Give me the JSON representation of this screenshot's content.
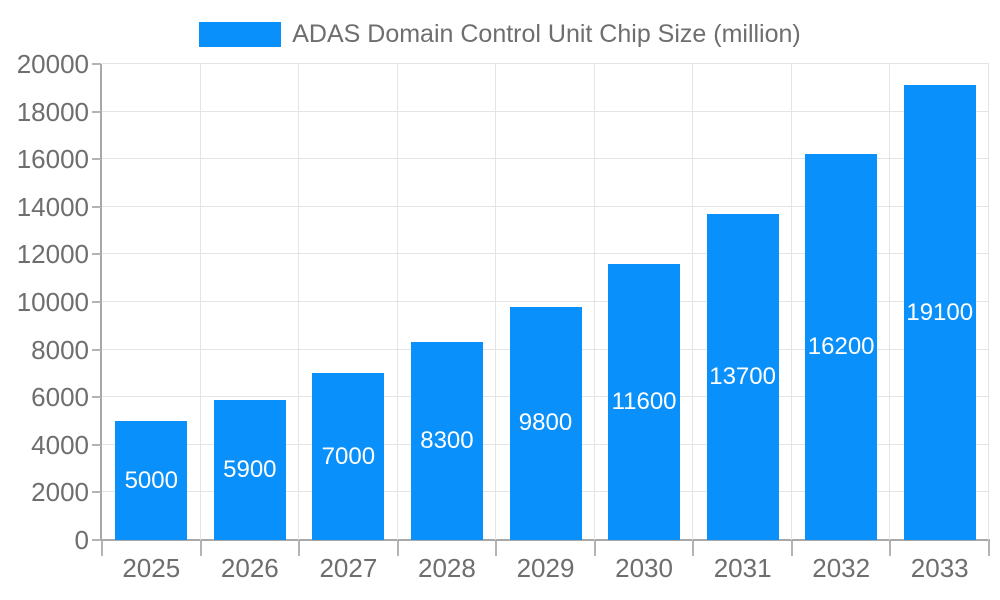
{
  "legend": {
    "label": "ADAS Domain Control Unit Chip Size (million)",
    "swatch_color": "#0a90fa"
  },
  "chart_data": {
    "type": "bar",
    "title": "ADAS Domain Control Unit Chip Size (million)",
    "categories": [
      "2025",
      "2026",
      "2027",
      "2028",
      "2029",
      "2030",
      "2031",
      "2032",
      "2033"
    ],
    "values": [
      5000,
      5900,
      7000,
      8300,
      9800,
      11600,
      13700,
      16200,
      19100
    ],
    "series": [
      {
        "name": "ADAS Domain Control Unit Chip Size (million)",
        "values": [
          5000,
          5900,
          7000,
          8300,
          9800,
          11600,
          13700,
          16200,
          19100
        ]
      }
    ],
    "xlabel": "",
    "ylabel": "",
    "ylim": [
      0,
      20000
    ],
    "ytick_step": 2000,
    "yticks": [
      0,
      2000,
      4000,
      6000,
      8000,
      10000,
      12000,
      14000,
      16000,
      18000,
      20000
    ],
    "grid": true,
    "legend_position": "top-center",
    "bar_color": "#0a90fa",
    "value_label_color": "#ffffff",
    "value_label_position": "inside-center"
  },
  "colors": {
    "bar": "#0a90fa",
    "axis_text": "#6e6e6e",
    "grid_line": "#e4e4e4",
    "axis_line": "#a8a8a8",
    "background": "#ffffff"
  }
}
